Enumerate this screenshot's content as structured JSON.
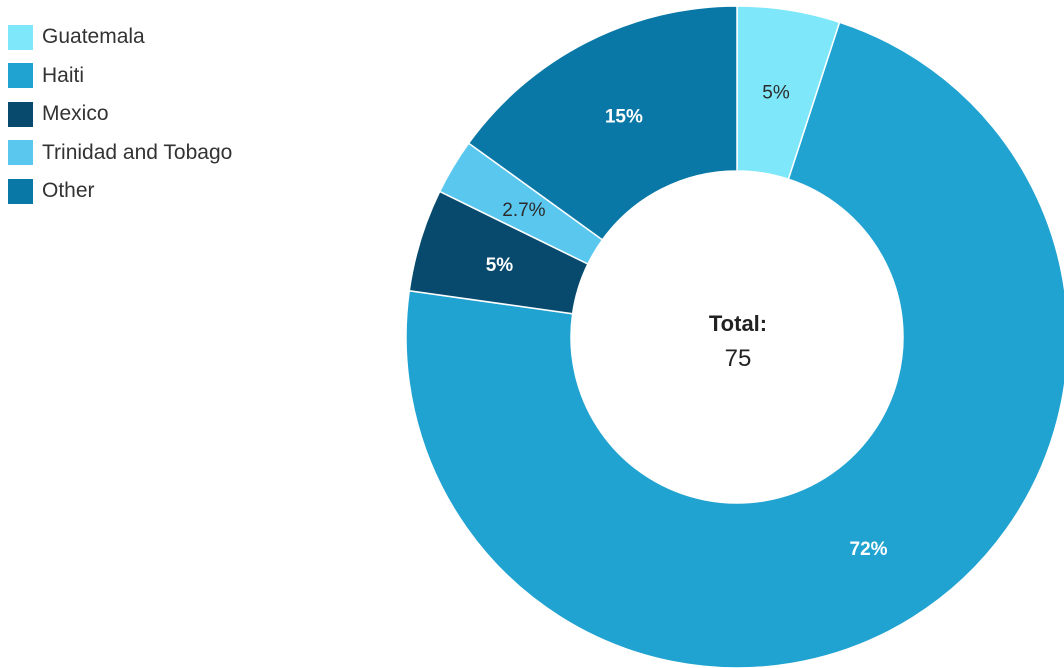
{
  "chart_data": {
    "type": "pie",
    "donut": true,
    "legend_position": "top-left",
    "categories": [
      "Guatemala",
      "Haiti",
      "Mexico",
      "Trinidad and Tobago",
      "Other"
    ],
    "values": [
      5,
      72,
      5,
      2.7,
      15
    ],
    "labels": [
      "5%",
      "72%",
      "5%",
      "2.7%",
      "15%"
    ],
    "colors": [
      "#7EE8FA",
      "#21A3D1",
      "#084A6E",
      "#5AC7EF",
      "#0A78A6"
    ],
    "center": {
      "title": "Total:",
      "value": "75"
    }
  }
}
